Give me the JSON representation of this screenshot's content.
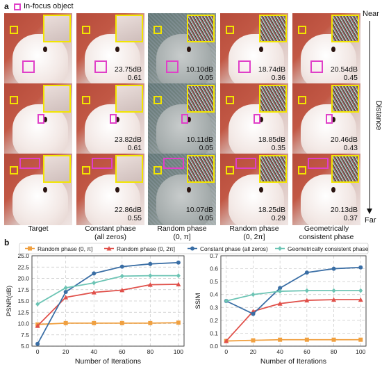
{
  "panel_a": {
    "label": "a",
    "legend_text": "In-focus object",
    "columns": [
      "Target",
      "Constant phase\n(all zeros)",
      "Random phase\n(0, π]",
      "Random phase\n(0, 2π]",
      "Geometrically\nconsistent phase"
    ],
    "distance": {
      "near": "Near",
      "far": "Far",
      "axis": "Distance"
    },
    "rows": [
      {
        "metrics": [
          null,
          [
            "23.75dB",
            "0.61"
          ],
          [
            "10.10dB",
            "0.05"
          ],
          [
            "18.74dB",
            "0.36"
          ],
          [
            "20.54dB",
            "0.45"
          ]
        ]
      },
      {
        "metrics": [
          null,
          [
            "23.82dB",
            "0.61"
          ],
          [
            "10.11dB",
            "0.05"
          ],
          [
            "18.85dB",
            "0.35"
          ],
          [
            "20.46dB",
            "0.43"
          ]
        ]
      },
      {
        "metrics": [
          null,
          [
            "22.86dB",
            "0.55"
          ],
          [
            "10.07dB",
            "0.05"
          ],
          [
            "18.25dB",
            "0.29"
          ],
          [
            "20.13dB",
            "0.37"
          ]
        ]
      }
    ]
  },
  "panel_b": {
    "label": "b"
  },
  "colors": {
    "orange": "#f0a040",
    "red": "#e0504a",
    "blue": "#3a6ea5",
    "teal": "#6cc4b4",
    "magenta": "#e040c8",
    "yellow": "#f2e500"
  },
  "chart_data": [
    {
      "type": "line",
      "title": "",
      "xlabel": "Number of Iterations",
      "ylabel": "PSNR(dB)",
      "x": [
        0,
        20,
        40,
        60,
        80,
        100
      ],
      "xticks": [
        "0",
        "20",
        "40",
        "60",
        "80",
        "100"
      ],
      "ylim": [
        5,
        25
      ],
      "yticks": [
        "5.0",
        "7.5",
        "10.0",
        "12.5",
        "15.0",
        "17.5",
        "20.0",
        "22.5",
        "25.0"
      ],
      "grid": true,
      "series": [
        {
          "name": "Random phase (0, π]",
          "color": "#f0a040",
          "marker": "square",
          "values": [
            9.8,
            10.1,
            10.1,
            10.1,
            10.1,
            10.2
          ]
        },
        {
          "name": "Random phase (0, 2π]",
          "color": "#e0504a",
          "marker": "triangle",
          "values": [
            9.5,
            15.8,
            16.9,
            17.4,
            18.6,
            18.7
          ]
        },
        {
          "name": "Constant phase (all zeros)",
          "color": "#3a6ea5",
          "marker": "circle",
          "values": [
            5.5,
            17.0,
            21.1,
            22.6,
            23.2,
            23.5
          ]
        },
        {
          "name": "Geometrically consistent phase",
          "color": "#6cc4b4",
          "marker": "diamond",
          "values": [
            14.3,
            17.9,
            19.0,
            20.5,
            20.6,
            20.6
          ]
        }
      ]
    },
    {
      "type": "line",
      "title": "",
      "xlabel": "Number of Iterations",
      "ylabel": "SSIM",
      "x": [
        0,
        20,
        40,
        60,
        80,
        100
      ],
      "xticks": [
        "0",
        "20",
        "40",
        "60",
        "80",
        "100"
      ],
      "ylim": [
        0.0,
        0.7
      ],
      "yticks": [
        "0.0",
        "0.1",
        "0.2",
        "0.3",
        "0.4",
        "0.5",
        "0.6",
        "0.7"
      ],
      "grid": true,
      "series": [
        {
          "name": "Random phase (0, π]",
          "color": "#f0a040",
          "marker": "square",
          "values": [
            0.04,
            0.045,
            0.05,
            0.05,
            0.05,
            0.05
          ]
        },
        {
          "name": "Random phase (0, 2π]",
          "color": "#e0504a",
          "marker": "triangle",
          "values": [
            0.04,
            0.27,
            0.33,
            0.355,
            0.36,
            0.36
          ]
        },
        {
          "name": "Constant phase (all zeros)",
          "color": "#3a6ea5",
          "marker": "circle",
          "values": [
            0.35,
            0.25,
            0.45,
            0.57,
            0.6,
            0.61
          ]
        },
        {
          "name": "Geometrically consistent phase",
          "color": "#6cc4b4",
          "marker": "diamond",
          "values": [
            0.35,
            0.4,
            0.425,
            0.43,
            0.43,
            0.43
          ]
        }
      ]
    }
  ]
}
